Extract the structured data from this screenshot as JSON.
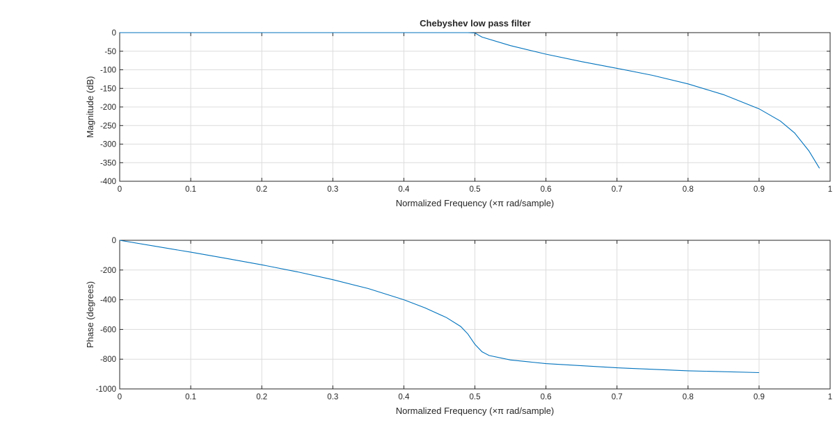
{
  "figure": {
    "title": "Chebyshev low pass filter"
  },
  "chart_data": [
    {
      "type": "line",
      "title": "Chebyshev low pass filter",
      "xlabel": "Normalized Frequency  (×π rad/sample)",
      "ylabel": "Magnitude (dB)",
      "xlim": [
        0,
        1
      ],
      "ylim": [
        -400,
        0
      ],
      "xticks": [
        "0",
        "0.1",
        "0.2",
        "0.3",
        "0.4",
        "0.5",
        "0.6",
        "0.7",
        "0.8",
        "0.9",
        "1"
      ],
      "yticks": [
        "0",
        "-50",
        "-100",
        "-150",
        "-200",
        "-250",
        "-300",
        "-350",
        "-400"
      ],
      "grid": true,
      "color": "#0072bd",
      "series": [
        {
          "x": [
            0,
            0.1,
            0.2,
            0.3,
            0.4,
            0.49,
            0.5,
            0.51,
            0.55,
            0.6,
            0.65,
            0.7,
            0.75,
            0.8,
            0.85,
            0.9,
            0.93,
            0.95,
            0.97,
            0.985
          ],
          "values": [
            0,
            0,
            0,
            0,
            0,
            0,
            -1,
            -12,
            -35,
            -58,
            -78,
            -96,
            -115,
            -138,
            -167,
            -205,
            -238,
            -270,
            -318,
            -365
          ]
        }
      ]
    },
    {
      "type": "line",
      "title": "",
      "xlabel": "Normalized Frequency  (×π rad/sample)",
      "ylabel": "Phase (degrees)",
      "xlim": [
        0,
        1
      ],
      "ylim": [
        -1000,
        0
      ],
      "xticks": [
        "0",
        "0.1",
        "0.2",
        "0.3",
        "0.4",
        "0.5",
        "0.6",
        "0.7",
        "0.8",
        "0.9",
        "1"
      ],
      "yticks": [
        "0",
        "-200",
        "-400",
        "-600",
        "-800",
        "-1000"
      ],
      "grid": true,
      "color": "#0072bd",
      "series": [
        {
          "x": [
            0,
            0.05,
            0.1,
            0.15,
            0.2,
            0.25,
            0.3,
            0.35,
            0.4,
            0.43,
            0.46,
            0.48,
            0.49,
            0.5,
            0.51,
            0.52,
            0.55,
            0.6,
            0.7,
            0.8,
            0.9
          ],
          "values": [
            0,
            -40,
            -80,
            -122,
            -165,
            -212,
            -265,
            -325,
            -400,
            -455,
            -520,
            -580,
            -630,
            -700,
            -750,
            -775,
            -805,
            -830,
            -858,
            -878,
            -890
          ]
        }
      ]
    }
  ]
}
